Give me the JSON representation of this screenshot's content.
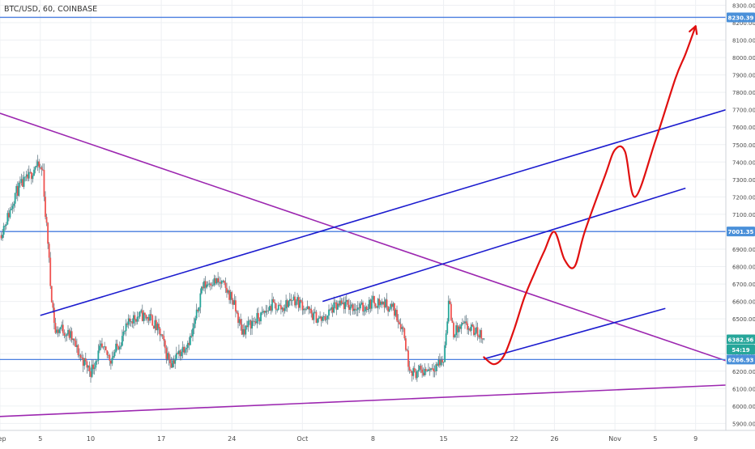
{
  "header": {
    "title": "BTC/USD, 60, COINBASE"
  },
  "colors": {
    "up": "#26a69a",
    "down": "#ef5350",
    "wick": "#546e7a",
    "channel": "#1c1ccf",
    "trend": "#9c27b0",
    "level": "#4a7fe0",
    "projection": "#e01010",
    "price_tag": "#4a90d9"
  },
  "chart_data": {
    "type": "candlestick",
    "symbol": "BTC/USD",
    "interval": "60",
    "exchange": "COINBASE",
    "ylim": [
      5860,
      8330
    ],
    "y_ticks": [
      5900,
      6000,
      6100,
      6200,
      6300,
      6400,
      6500,
      6600,
      6700,
      6800,
      6900,
      7000,
      7100,
      7200,
      7300,
      7400,
      7500,
      7600,
      7700,
      7800,
      7900,
      8000,
      8100,
      8200,
      8300
    ],
    "y_tick_labels": [
      "5900.00",
      "6000.00",
      "6100.00",
      "6200.00",
      "6300.00",
      "6400.00",
      "6500.00",
      "6600.00",
      "6700.00",
      "6800.00",
      "6900.00",
      "7000.00",
      "7100.00",
      "7200.00",
      "7300.00",
      "7400.00",
      "7500.00",
      "7600.00",
      "7700.00",
      "7800.00",
      "7900.00",
      "8000.00",
      "8100.00",
      "8200.00",
      "8300.00"
    ],
    "x_start": "2018-09-01",
    "x_end": "2018-11-12",
    "x_ticks": [
      {
        "date": "2018-09-01",
        "label": "Sep"
      },
      {
        "date": "2018-09-05",
        "label": "5"
      },
      {
        "date": "2018-09-10",
        "label": "10"
      },
      {
        "date": "2018-09-17",
        "label": "17"
      },
      {
        "date": "2018-09-24",
        "label": "24"
      },
      {
        "date": "2018-10-01",
        "label": "Oct"
      },
      {
        "date": "2018-10-08",
        "label": "8"
      },
      {
        "date": "2018-10-15",
        "label": "15"
      },
      {
        "date": "2018-10-22",
        "label": "22"
      },
      {
        "date": "2018-10-26",
        "label": "26"
      },
      {
        "date": "2018-11-01",
        "label": "Nov"
      },
      {
        "date": "2018-11-05",
        "label": "5"
      },
      {
        "date": "2018-11-09",
        "label": "9"
      }
    ],
    "price_path": [
      [
        "2018-09-01",
        6980
      ],
      [
        "2018-09-02",
        7120
      ],
      [
        "2018-09-02T12:00",
        7220
      ],
      [
        "2018-09-03",
        7260
      ],
      [
        "2018-09-04",
        7320
      ],
      [
        "2018-09-04T12:00",
        7380
      ],
      [
        "2018-09-05T06:00",
        7350
      ],
      [
        "2018-09-05T12:00",
        7100
      ],
      [
        "2018-09-05T18:00",
        6950
      ],
      [
        "2018-09-06",
        6700
      ],
      [
        "2018-09-06T12:00",
        6420
      ],
      [
        "2018-09-07",
        6450
      ],
      [
        "2018-09-08",
        6400
      ],
      [
        "2018-09-09",
        6280
      ],
      [
        "2018-09-10",
        6200
      ],
      [
        "2018-09-11",
        6330
      ],
      [
        "2018-09-12",
        6270
      ],
      [
        "2018-09-13",
        6380
      ],
      [
        "2018-09-14",
        6500
      ],
      [
        "2018-09-15",
        6520
      ],
      [
        "2018-09-16",
        6500
      ],
      [
        "2018-09-17",
        6400
      ],
      [
        "2018-09-17T12:00",
        6300
      ],
      [
        "2018-09-18",
        6250
      ],
      [
        "2018-09-19",
        6320
      ],
      [
        "2018-09-20",
        6400
      ],
      [
        "2018-09-20T12:00",
        6520
      ],
      [
        "2018-09-21",
        6680
      ],
      [
        "2018-09-22",
        6720
      ],
      [
        "2018-09-23",
        6700
      ],
      [
        "2018-09-24",
        6620
      ],
      [
        "2018-09-25",
        6430
      ],
      [
        "2018-09-26",
        6480
      ],
      [
        "2018-09-27",
        6520
      ],
      [
        "2018-09-28",
        6580
      ],
      [
        "2018-09-29",
        6560
      ],
      [
        "2018-09-30",
        6620
      ],
      [
        "2018-10-01",
        6580
      ],
      [
        "2018-10-02",
        6520
      ],
      [
        "2018-10-03",
        6490
      ],
      [
        "2018-10-04",
        6560
      ],
      [
        "2018-10-05",
        6580
      ],
      [
        "2018-10-06",
        6570
      ],
      [
        "2018-10-07",
        6560
      ],
      [
        "2018-10-08",
        6600
      ],
      [
        "2018-10-09",
        6590
      ],
      [
        "2018-10-10",
        6560
      ],
      [
        "2018-10-11",
        6440
      ],
      [
        "2018-10-11T12:00",
        6250
      ],
      [
        "2018-10-12",
        6190
      ],
      [
        "2018-10-13",
        6200
      ],
      [
        "2018-10-14",
        6230
      ],
      [
        "2018-10-15",
        6260
      ],
      [
        "2018-10-15T12:00",
        6600
      ],
      [
        "2018-10-16",
        6420
      ],
      [
        "2018-10-17",
        6460
      ],
      [
        "2018-10-18",
        6430
      ],
      [
        "2018-10-19",
        6400
      ]
    ],
    "horizontal_levels": [
      {
        "price": 8230.39,
        "label": "8230.39"
      },
      {
        "price": 7001.35,
        "label": "7001.35"
      },
      {
        "price": 6266.93,
        "label": "6266.93"
      }
    ],
    "current_price": {
      "price": 6382.56,
      "label": "6382.56"
    },
    "countdown": {
      "price": 6324,
      "label": "54:19"
    },
    "drawings": {
      "channel_lines": [
        [
          [
            "2018-09-05",
            6520
          ],
          [
            "2018-11-12",
            7700
          ]
        ],
        [
          [
            "2018-10-03",
            6600
          ],
          [
            "2018-11-08",
            7250
          ]
        ],
        [
          [
            "2018-10-19",
            6270
          ],
          [
            "2018-11-06",
            6560
          ]
        ]
      ],
      "trend_lines": [
        [
          [
            "2018-09-01",
            7680
          ],
          [
            "2018-11-12",
            6260
          ]
        ],
        [
          [
            "2018-09-01",
            5940
          ],
          [
            "2018-11-12",
            6120
          ]
        ]
      ],
      "projection": [
        [
          "2018-10-19",
          6280
        ],
        [
          "2018-10-20",
          6240
        ],
        [
          "2018-10-21",
          6290
        ],
        [
          "2018-10-22",
          6440
        ],
        [
          "2018-10-23",
          6620
        ],
        [
          "2018-10-24",
          6760
        ],
        [
          "2018-10-25",
          6890
        ],
        [
          "2018-10-26",
          7000
        ],
        [
          "2018-10-27",
          6840
        ],
        [
          "2018-10-28",
          6800
        ],
        [
          "2018-10-29",
          7000
        ],
        [
          "2018-10-31",
          7320
        ],
        [
          "2018-11-01",
          7470
        ],
        [
          "2018-11-02",
          7460
        ],
        [
          "2018-11-03",
          7200
        ],
        [
          "2018-11-05",
          7520
        ],
        [
          "2018-11-07",
          7880
        ],
        [
          "2018-11-08",
          8020
        ],
        [
          "2018-11-09",
          8180
        ]
      ]
    }
  }
}
